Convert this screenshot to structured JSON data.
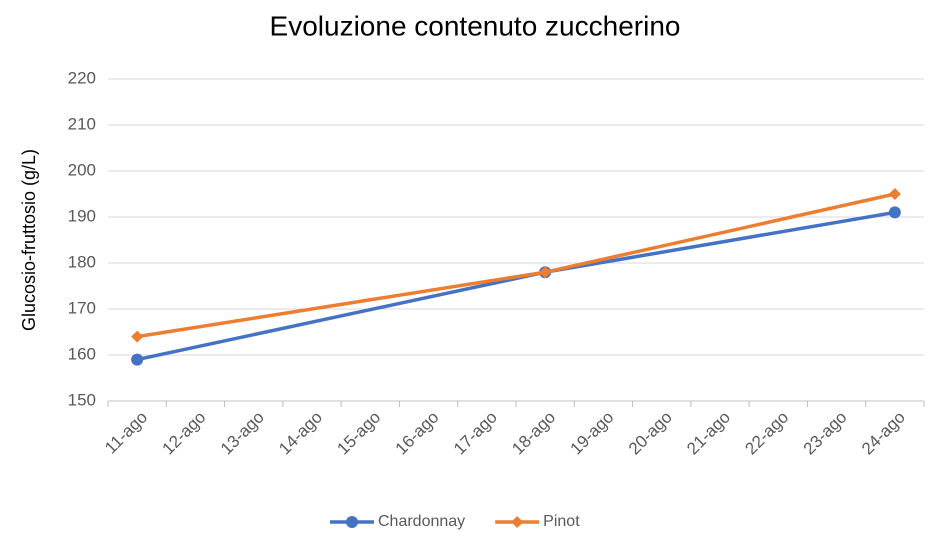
{
  "chart_data": {
    "type": "line",
    "title": "Evoluzione contenuto zuccherino",
    "y_label": "Glucosio-fruttosio (g/L)",
    "categories": [
      "11-ago",
      "12-ago",
      "13-ago",
      "14-ago",
      "15-ago",
      "16-ago",
      "17-ago",
      "18-ago",
      "19-ago",
      "20-ago",
      "21-ago",
      "22-ago",
      "23-ago",
      "24-ago"
    ],
    "series": [
      {
        "name": "Chardonnay",
        "color": "#4472c4",
        "marker": "circle",
        "x": [
          "11-ago",
          "18-ago",
          "24-ago"
        ],
        "values": [
          159,
          178,
          191
        ]
      },
      {
        "name": "Pinot",
        "color": "#ed7d31",
        "marker": "diamond",
        "x": [
          "11-ago",
          "18-ago",
          "24-ago"
        ],
        "values": [
          164,
          178,
          195
        ]
      }
    ],
    "ylim": [
      150,
      220
    ],
    "yticks": [
      150,
      160,
      170,
      180,
      190,
      200,
      210,
      220
    ],
    "grid": true,
    "legend": "bottom"
  }
}
